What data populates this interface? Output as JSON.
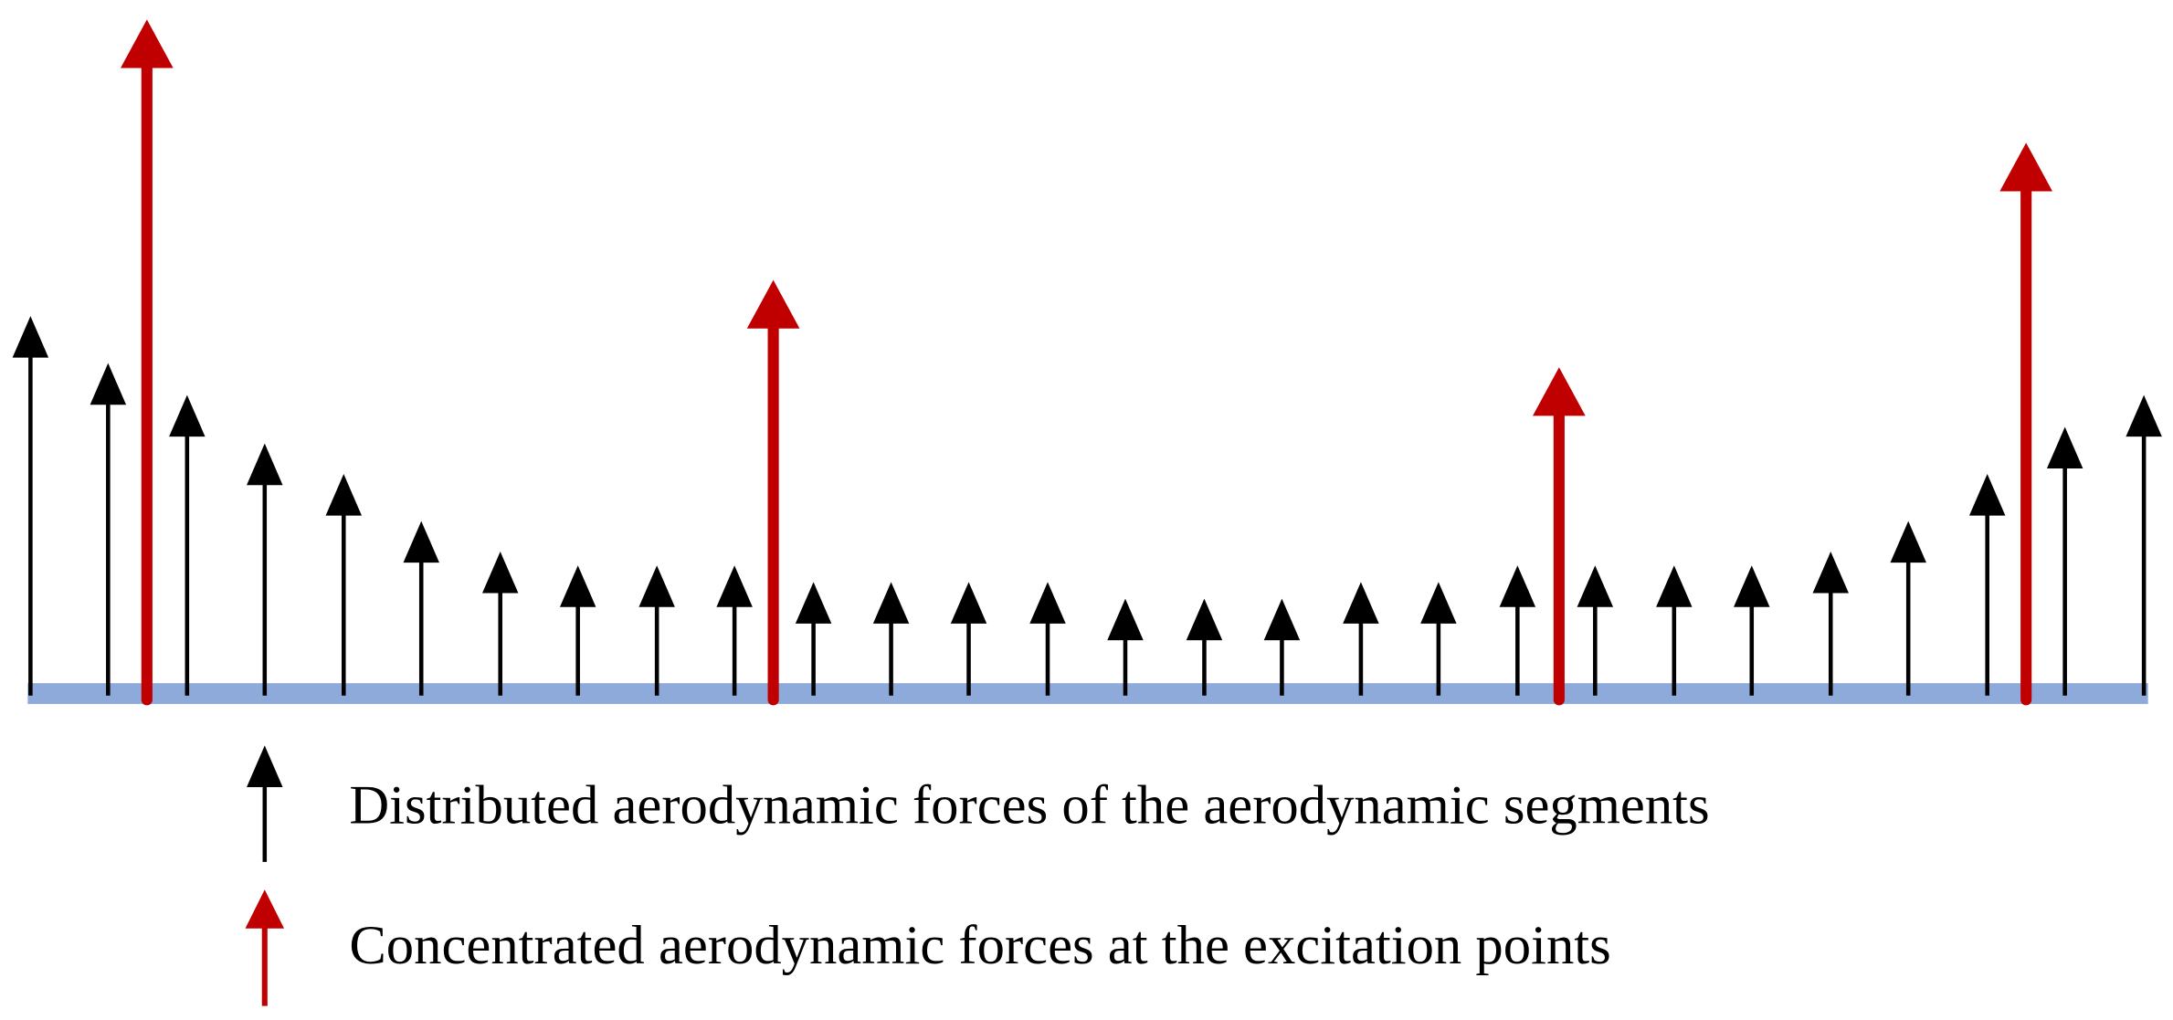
{
  "legend": {
    "items": [
      {
        "label": "Distributed aerodynamic forces of the aerodynamic segments"
      },
      {
        "label": "Concentrated aerodynamic forces at the excitation points"
      }
    ]
  }
}
